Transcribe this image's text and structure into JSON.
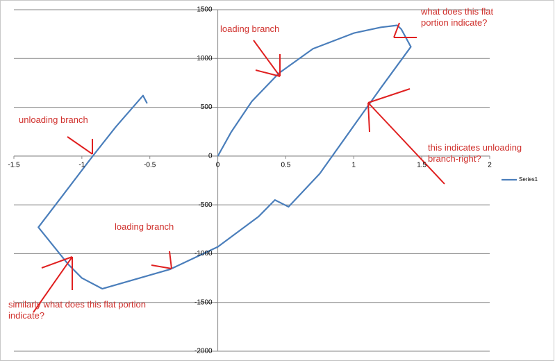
{
  "chart_data": {
    "type": "line",
    "series": [
      {
        "name": "Series1",
        "color": "#4a7ebb",
        "x": [
          0,
          0.1,
          0.25,
          0.45,
          0.7,
          1.0,
          1.2,
          1.32,
          1.35,
          1.42,
          1.2,
          1.0,
          0.75,
          0.52,
          0.42,
          0.3,
          0,
          -0.35,
          -0.85,
          -1.0,
          -1.1,
          -1.32,
          -1.15,
          -0.92,
          -0.75,
          -0.55,
          -0.52
        ],
        "values": [
          0,
          250,
          560,
          850,
          1100,
          1260,
          1320,
          1340,
          1300,
          1120,
          700,
          310,
          -180,
          -520,
          -450,
          -620,
          -930,
          -1160,
          -1360,
          -1250,
          -1110,
          -730,
          -420,
          0,
          300,
          620,
          540
        ]
      }
    ],
    "xlim": [
      -1.5,
      2
    ],
    "xticks": [
      -1.5,
      -1,
      -0.5,
      0,
      0.5,
      1,
      1.5,
      2
    ],
    "ylim": [
      -2000,
      1500
    ],
    "yticks": [
      -2000,
      -1500,
      -1000,
      -500,
      0,
      500,
      1000,
      1500
    ],
    "grid": true,
    "legend": "right",
    "annotations": [
      "loading branch",
      "what does this flat portion indicate?",
      "unloading branch",
      "this indicates unloading branch-right?",
      "loading branch",
      "similarly what does this flat portion indicate?"
    ]
  }
}
